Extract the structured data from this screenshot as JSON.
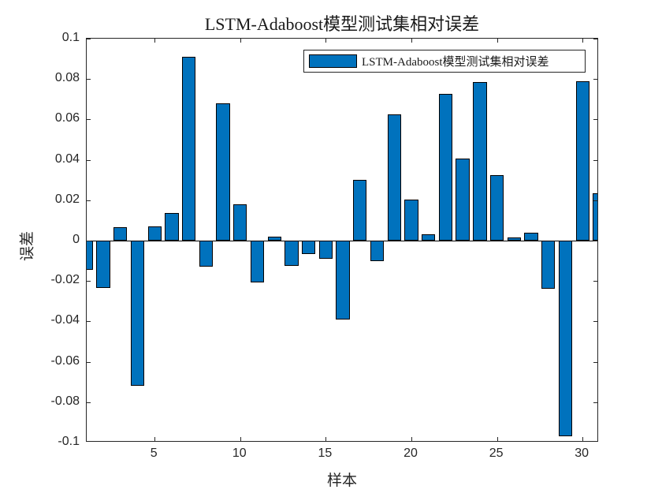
{
  "colors": {
    "bar_fill": "#0072BD",
    "bar_edge": "#000000",
    "axis": "#262626",
    "text": "#262626",
    "background": "#ffffff"
  },
  "chart_data": {
    "type": "bar",
    "title": "LSTM-Adaboost模型测试集相对误差",
    "xlabel": "样本",
    "ylabel": "误差",
    "x": [
      1,
      2,
      3,
      4,
      5,
      6,
      7,
      8,
      9,
      10,
      11,
      12,
      13,
      14,
      15,
      16,
      17,
      18,
      19,
      20,
      21,
      22,
      23,
      24,
      25,
      26,
      27,
      28,
      29,
      30,
      31
    ],
    "values": [
      -0.0145,
      -0.0235,
      0.0065,
      -0.072,
      0.007,
      0.0135,
      0.091,
      -0.013,
      0.068,
      0.018,
      -0.0205,
      0.002,
      -0.0125,
      -0.0065,
      -0.009,
      -0.039,
      0.03,
      -0.01,
      0.0625,
      0.0205,
      0.003,
      0.0725,
      0.0405,
      0.0785,
      0.0325,
      0.0015,
      0.004,
      -0.024,
      -0.097,
      0.079,
      0.0235
    ],
    "ylim": [
      -0.1,
      0.1
    ],
    "xlim": [
      1.03,
      30.96
    ],
    "yticks": [
      0.1,
      0.08,
      0.06,
      0.04,
      0.02,
      0,
      -0.02,
      -0.04,
      -0.06,
      -0.08,
      -0.1
    ],
    "ytick_labels": [
      "0.1",
      "0.08",
      "0.06",
      "0.04",
      "0.02",
      "0",
      "-0.02",
      "-0.04",
      "-0.06",
      "-0.08",
      "-0.1"
    ],
    "xticks": [
      5,
      10,
      15,
      20,
      25,
      30
    ],
    "xtick_labels": [
      "5",
      "10",
      "15",
      "20",
      "25",
      "30"
    ],
    "bar_width": 0.8,
    "grid": false,
    "legend": [
      "LSTM-Adaboost模型测试集相对误差"
    ],
    "legend_position": "inside-top-center",
    "bar_color": "#0072BD",
    "bar_edge_color": "#000000"
  }
}
